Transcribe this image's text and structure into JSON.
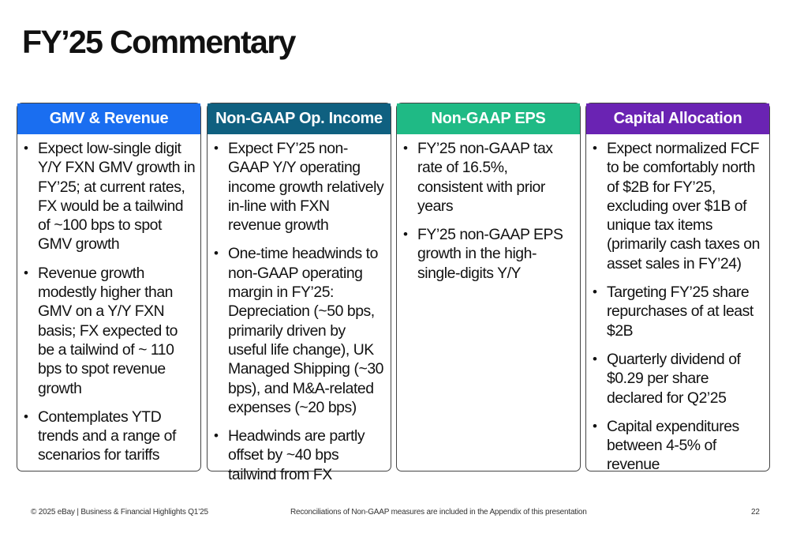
{
  "title": "FY’25 Commentary",
  "columns": [
    {
      "heading": "GMV & Revenue",
      "color": "#1a6ef0",
      "bullets": [
        "Expect low-single digit Y/Y FXN GMV growth in FY’25; at current rates, FX would be a tailwind of ~100 bps to spot GMV growth",
        "Revenue growth modestly higher than GMV on a Y/Y FXN basis; FX expected to be a tailwind of ~ 110 bps to spot revenue growth",
        "Contemplates YTD trends and a range of scenarios for tariffs"
      ]
    },
    {
      "heading": "Non-GAAP Op. Income",
      "color": "#0f6080",
      "bullets": [
        "Expect FY’25 non-GAAP Y/Y operating income growth relatively in-line with FXN revenue growth",
        "One-time headwinds to non-GAAP operating margin in FY’25: Depreciation (~50 bps, primarily driven by useful life change), UK Managed Shipping (~30 bps), and M&A-related expenses (~20 bps)",
        "Headwinds are partly offset by ~40 bps tailwind from FX"
      ]
    },
    {
      "heading": "Non-GAAP EPS",
      "color": "#1fba85",
      "bullets": [
        "FY’25 non-GAAP tax rate of 16.5%, consistent with prior years",
        "FY’25 non-GAAP EPS growth in the high-single-digits Y/Y"
      ]
    },
    {
      "heading": "Capital Allocation",
      "color": "#6a23b3",
      "bullets": [
        "Expect normalized FCF to be comfortably north of $2B for FY’25, excluding over $1B of unique tax items (primarily cash taxes on asset sales in FY’24)",
        "Targeting FY’25 share repurchases of at least $2B",
        "Quarterly dividend of $0.29 per share declared for Q2’25",
        "Capital expenditures between 4-5% of revenue"
      ]
    }
  ],
  "footer": {
    "left": "© 2025 eBay | Business & Financial Highlights Q1’25",
    "center": "Reconciliations of Non-GAAP measures are included in the Appendix of this presentation",
    "page_number": "22"
  }
}
